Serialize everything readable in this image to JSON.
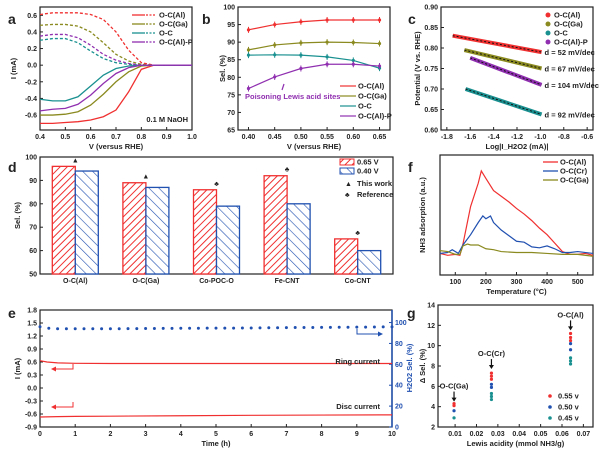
{
  "chart_data": [
    {
      "panel": "a",
      "type": "line",
      "xlabel": "V (versus RHE)",
      "ylabel": "I (mA)",
      "xlim": [
        0.4,
        1.0
      ],
      "ylim": [
        -0.78,
        0.7
      ],
      "xticks": [
        "0.4",
        "0.5",
        "0.6",
        "0.7",
        "0.8",
        "0.9",
        "1.0"
      ],
      "yticks": [
        "-0.6",
        "-0.4",
        "-0.2",
        "0.0",
        "0.2",
        "0.4",
        "0.6"
      ],
      "annotation": "0.1 M NaOH",
      "x": [
        0.4,
        0.45,
        0.5,
        0.55,
        0.6,
        0.65,
        0.7,
        0.75,
        0.8,
        0.85,
        0.9,
        0.95,
        1.0
      ],
      "series": [
        {
          "name": "O-C(Al)",
          "color": "#f03030",
          "ring": [
            0.61,
            0.63,
            0.63,
            0.63,
            0.61,
            0.55,
            0.4,
            0.18,
            0.03,
            0,
            0,
            0,
            0
          ],
          "disk": [
            -0.7,
            -0.7,
            -0.69,
            -0.68,
            -0.66,
            -0.62,
            -0.54,
            -0.32,
            -0.05,
            0,
            0,
            0,
            0
          ]
        },
        {
          "name": "O-C(Ga)",
          "color": "#8a8a20",
          "ring": [
            0.48,
            0.49,
            0.49,
            0.47,
            0.4,
            0.27,
            0.13,
            0.05,
            0.01,
            0,
            0,
            0,
            0
          ],
          "disk": [
            -0.6,
            -0.6,
            -0.59,
            -0.56,
            -0.48,
            -0.35,
            -0.2,
            -0.08,
            -0.01,
            0,
            0,
            0,
            0
          ]
        },
        {
          "name": "O-C",
          "color": "#1a9090",
          "ring": [
            0.3,
            0.32,
            0.32,
            0.27,
            0.17,
            0.08,
            0.03,
            0.01,
            0,
            0,
            0,
            0,
            0
          ],
          "disk": [
            -0.41,
            -0.43,
            -0.43,
            -0.38,
            -0.25,
            -0.12,
            -0.04,
            -0.01,
            0,
            0,
            0,
            0,
            0
          ]
        },
        {
          "name": "O-C(Al)-P",
          "color": "#9030b0",
          "ring": [
            0.35,
            0.37,
            0.37,
            0.33,
            0.24,
            0.13,
            0.06,
            0.02,
            0,
            0,
            0,
            0,
            0
          ],
          "disk": [
            -0.55,
            -0.53,
            -0.52,
            -0.47,
            -0.36,
            -0.22,
            -0.1,
            -0.03,
            0,
            0,
            0,
            0,
            0
          ]
        }
      ]
    },
    {
      "panel": "b",
      "type": "line",
      "xlabel": "V (versus RHE)",
      "ylabel": "Sel. (%)",
      "xlim": [
        0.38,
        0.67
      ],
      "ylim": [
        65,
        100
      ],
      "xticks": [
        "0.40",
        "0.45",
        "0.50",
        "0.55",
        "0.60",
        "0.65"
      ],
      "yticks": [
        "65",
        "70",
        "75",
        "80",
        "85",
        "90",
        "95",
        "100"
      ],
      "annotation": "Poisoning Lewis acid sites",
      "x": [
        0.4,
        0.45,
        0.5,
        0.55,
        0.6,
        0.65
      ],
      "series": [
        {
          "name": "O-C(Al)",
          "color": "#f03030",
          "values": [
            93.5,
            95.0,
            95.8,
            96.3,
            96.3,
            96.3
          ]
        },
        {
          "name": "O-C(Ga)",
          "color": "#8a8a20",
          "values": [
            87.8,
            89.2,
            89.8,
            90.0,
            89.9,
            89.6
          ]
        },
        {
          "name": "O-C",
          "color": "#1a9090",
          "values": [
            86.3,
            86.4,
            86.3,
            85.8,
            84.8,
            82.6
          ]
        },
        {
          "name": "O-C(Al)-P",
          "color": "#9030b0",
          "values": [
            76.8,
            80.1,
            82.5,
            83.7,
            83.7,
            83.2
          ]
        }
      ]
    },
    {
      "panel": "c",
      "type": "scatter",
      "xlabel": "Log|I_H2O2 (mA)|",
      "ylabel": "Potential (V vs. RHE)",
      "xlim": [
        -1.85,
        -0.55
      ],
      "ylim": [
        0.6,
        0.9
      ],
      "xticks": [
        "-1.8",
        "-1.6",
        "-1.4",
        "-1.2",
        "-1.0",
        "-0.8",
        "-0.6"
      ],
      "yticks": [
        "0.60",
        "0.65",
        "0.70",
        "0.75",
        "0.80",
        "0.85",
        "0.90"
      ],
      "series": [
        {
          "name": "O-C(Al)",
          "color": "#f03030",
          "x": [
            -1.75,
            -0.99
          ],
          "y": [
            0.83,
            0.79
          ],
          "slope_label": "d = 52 mV/dec"
        },
        {
          "name": "O-C(Ga)",
          "color": "#8a8a20",
          "x": [
            -1.65,
            -0.99
          ],
          "y": [
            0.795,
            0.75
          ],
          "slope_label": "d = 67 mV/dec"
        },
        {
          "name": "O-C",
          "color": "#1a9090",
          "x": [
            -1.64,
            -0.99
          ],
          "y": [
            0.7,
            0.638
          ],
          "slope_label": "d = 92 mV/dec"
        },
        {
          "name": "O-C(Al)-P",
          "color": "#9030b0",
          "x": [
            -1.6,
            -0.99
          ],
          "y": [
            0.776,
            0.71
          ],
          "slope_label": "d = 104 mV/dec"
        }
      ]
    },
    {
      "panel": "d",
      "type": "bar",
      "xlabel": "",
      "ylabel": "Sel. (%)",
      "ylim": [
        50,
        100
      ],
      "yticks": [
        "50",
        "60",
        "70",
        "80",
        "90",
        "100"
      ],
      "categories": [
        "O-C(Al)",
        "O-C(Ga)",
        "Co-POC-O",
        "Fe-CNT",
        "Co-CNT"
      ],
      "series": [
        {
          "name": "0.65 V",
          "color": "#f03030",
          "values": [
            96,
            89,
            86,
            92,
            65
          ]
        },
        {
          "name": "0.40 V",
          "color": "#2050b0",
          "values": [
            94,
            87,
            79,
            80,
            60
          ]
        }
      ],
      "markers": {
        "this_work": "This work",
        "reference": "Reference",
        "types": [
          "this_work",
          "this_work",
          "reference",
          "reference",
          "reference"
        ]
      }
    },
    {
      "panel": "e",
      "type": "line",
      "xlabel": "Time (h)",
      "ylabel": "I (mA)",
      "y2label": "H2O2 Sel. (%)",
      "xlim": [
        0,
        10
      ],
      "ylim": [
        -0.9,
        1.8
      ],
      "y2lim": [
        0,
        112
      ],
      "xticks": [
        "0",
        "1",
        "2",
        "3",
        "4",
        "5",
        "6",
        "7",
        "8",
        "9",
        "10"
      ],
      "yticks": [
        "-0.9",
        "-0.6",
        "-0.3",
        "0.0",
        "0.3",
        "0.6",
        "0.9",
        "1.2",
        "1.5",
        "1.8"
      ],
      "y2ticks": [
        "0",
        "20",
        "40",
        "60",
        "80",
        "100"
      ],
      "ring_label": "Ring current",
      "disc_label": "Disc current",
      "ring": {
        "x": [
          0,
          0.2,
          0.5,
          1,
          2,
          4,
          6,
          8,
          10
        ],
        "y": [
          0.63,
          0.6,
          0.58,
          0.57,
          0.565,
          0.565,
          0.565,
          0.565,
          0.565
        ]
      },
      "disc": {
        "x": [
          0,
          0.5,
          1,
          2,
          4,
          6,
          8,
          10
        ],
        "y": [
          -0.67,
          -0.66,
          -0.655,
          -0.65,
          -0.64,
          -0.63,
          -0.625,
          -0.62
        ]
      },
      "selectivity": {
        "start": 0,
        "step": 0.25,
        "values": [
          96,
          94.5,
          94,
          94,
          94,
          94,
          94,
          94,
          94,
          94,
          94.2,
          94.2,
          94.3,
          94.3,
          94.4,
          94.4,
          94.5,
          94.5,
          94.5,
          94.6,
          94.6,
          94.7,
          94.7,
          94.8,
          94.8,
          94.9,
          95,
          95,
          95.1,
          95.2,
          95.3,
          95.3,
          95.4,
          95.4,
          95.5,
          95.5,
          95.6,
          95.6,
          95.7,
          95.8,
          95.8
        ]
      }
    },
    {
      "panel": "f",
      "type": "line",
      "xlabel": "Temperature (°C)",
      "ylabel": "NH3 adsorption (a.u.)",
      "xlim": [
        50,
        550
      ],
      "ylim": [
        -0.18,
        1.1
      ],
      "xticks": [
        "100",
        "200",
        "300",
        "400",
        "500"
      ],
      "series": [
        {
          "name": "O-C(Al)",
          "color": "#f03030",
          "x": [
            50,
            75,
            100,
            115,
            125,
            150,
            175,
            185,
            200,
            225,
            250,
            275,
            300,
            325,
            350,
            375,
            400,
            425,
            450,
            475,
            500,
            525,
            550
          ],
          "y": [
            0.05,
            0.03,
            0.04,
            0.03,
            0.15,
            0.55,
            0.8,
            0.93,
            0.85,
            0.72,
            0.66,
            0.6,
            0.53,
            0.47,
            0.4,
            0.32,
            0.25,
            0.16,
            0.07,
            0.04,
            0.04,
            0.05,
            0.03
          ]
        },
        {
          "name": "O-C(Cr)",
          "color": "#2050b0",
          "x": [
            50,
            75,
            90,
            110,
            125,
            150,
            175,
            190,
            200,
            215,
            225,
            250,
            275,
            300,
            325,
            350,
            375,
            400,
            425,
            450,
            475,
            500,
            550
          ],
          "y": [
            0.05,
            0.06,
            0.09,
            0.05,
            0.14,
            0.25,
            0.38,
            0.45,
            0.42,
            0.45,
            0.38,
            0.3,
            0.24,
            0.18,
            0.17,
            0.12,
            0.11,
            0.13,
            0.1,
            0.06,
            0.06,
            0.07,
            0.05
          ]
        },
        {
          "name": "O-C(Ga)",
          "color": "#8a8a20",
          "x": [
            50,
            75,
            100,
            115,
            125,
            140,
            150,
            175,
            200,
            225,
            250,
            300,
            350,
            400,
            450,
            500,
            550
          ],
          "y": [
            0.08,
            0.07,
            0.04,
            0.04,
            0.13,
            0.15,
            0.14,
            0.14,
            0.1,
            0.09,
            0.07,
            0.06,
            0.06,
            0.05,
            0.04,
            0.04,
            0.02
          ]
        }
      ]
    },
    {
      "panel": "g",
      "type": "scatter",
      "xlabel": "Lewis acidity (mmol NH3/g)",
      "ylabel": "Δ Sel. (%)",
      "xlim": [
        0.002,
        0.0745
      ],
      "ylim": [
        2,
        14
      ],
      "xticks": [
        "0.01",
        "0.02",
        "0.03",
        "0.04",
        "0.05",
        "0.06",
        "0.07"
      ],
      "yticks": [
        "2",
        "4",
        "6",
        "8",
        "10",
        "12",
        "14"
      ],
      "materials": [
        {
          "name": "O-C(Ga)",
          "x": 0.0095
        },
        {
          "name": "O-C(Cr)",
          "x": 0.027
        },
        {
          "name": "O-C(Al)",
          "x": 0.064
        }
      ],
      "series": [
        {
          "name": "0.55 v",
          "color": "#f03030",
          "points": [
            [
              0.0095,
              4.3
            ],
            [
              0.0095,
              4.1
            ],
            [
              0.027,
              7.3
            ],
            [
              0.027,
              7.0
            ],
            [
              0.027,
              6.7
            ],
            [
              0.064,
              11.2
            ],
            [
              0.064,
              10.8
            ],
            [
              0.064,
              10.5
            ]
          ]
        },
        {
          "name": "0.50 v",
          "color": "#2050b0",
          "points": [
            [
              0.0095,
              3.6
            ],
            [
              0.027,
              6.2
            ],
            [
              0.027,
              5.9
            ],
            [
              0.064,
              10.2
            ],
            [
              0.064,
              9.6
            ]
          ]
        },
        {
          "name": "0.45 v",
          "color": "#1a9090",
          "points": [
            [
              0.0095,
              2.9
            ],
            [
              0.027,
              5.3
            ],
            [
              0.027,
              5.0
            ],
            [
              0.027,
              4.7
            ],
            [
              0.064,
              8.8
            ],
            [
              0.064,
              8.5
            ],
            [
              0.064,
              8.2
            ]
          ]
        }
      ]
    }
  ]
}
